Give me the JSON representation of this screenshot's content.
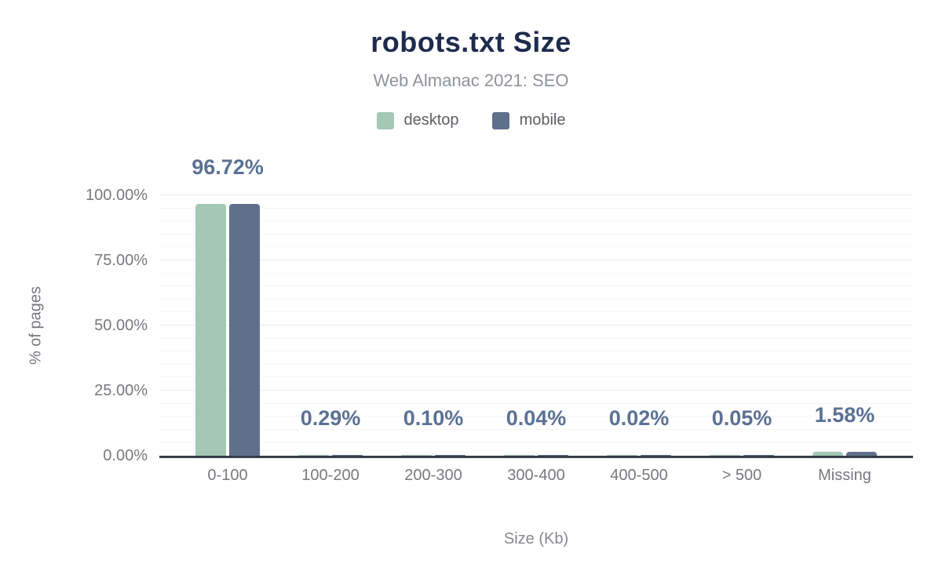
{
  "title": "robots.txt Size",
  "subtitle": "Web Almanac 2021: SEO",
  "legend": {
    "items": [
      {
        "label": "desktop",
        "color": "#a4c8b4"
      },
      {
        "label": "mobile",
        "color": "#5f708c"
      }
    ]
  },
  "chart_data": {
    "type": "bar",
    "title": "robots.txt Size",
    "subtitle": "Web Almanac 2021: SEO",
    "categories": [
      "0-100",
      "100-200",
      "200-300",
      "300-400",
      "400-500",
      "> 500",
      "Missing"
    ],
    "series": [
      {
        "name": "desktop",
        "color": "#a4c8b4",
        "values": [
          96.72,
          0.29,
          0.1,
          0.04,
          0.02,
          0.05,
          1.58
        ]
      },
      {
        "name": "mobile",
        "color": "#5f708c",
        "values": [
          96.72,
          0.29,
          0.1,
          0.04,
          0.02,
          0.05,
          1.58
        ]
      }
    ],
    "bar_labels": [
      "96.72%",
      "0.29%",
      "0.10%",
      "0.04%",
      "0.02%",
      "0.05%",
      "1.58%"
    ],
    "bar_label_color": "#5b7194",
    "xlabel": "Size (Kb)",
    "ylabel": "% of pages",
    "yticks": [
      "100.00%",
      "75.00%",
      "50.00%",
      "25.00%",
      "0.00%"
    ],
    "ylim": [
      0,
      100
    ],
    "grid": "horizontal minor lines every 5%, major lines every 25%",
    "legend_position": "top"
  }
}
